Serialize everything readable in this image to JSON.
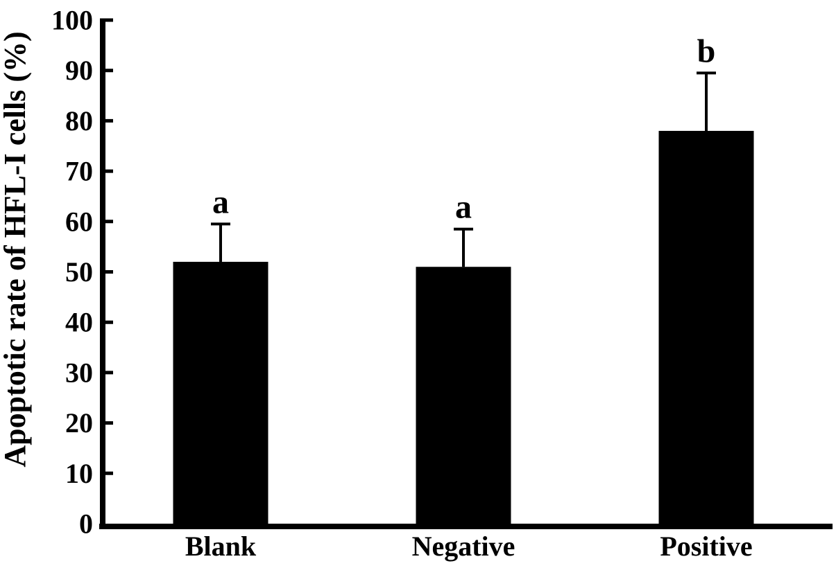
{
  "chart_data": {
    "type": "bar",
    "title": "",
    "xlabel": "",
    "ylabel": "Apoptotic rate of HFL-I cells (%)",
    "categories": [
      "Blank",
      "Negative",
      "Positive"
    ],
    "values": [
      52,
      51,
      78
    ],
    "errors_upper": [
      7.5,
      7.5,
      11.5
    ],
    "sig_labels": [
      "a",
      "a",
      "b"
    ],
    "yticks": [
      0,
      10,
      20,
      30,
      40,
      50,
      60,
      70,
      80,
      90,
      100
    ],
    "ylim": [
      0,
      100
    ],
    "grid": false,
    "legend_position": "none",
    "bar_color": "#000000",
    "axis_color": "#000000",
    "background_color": "#ffffff"
  }
}
